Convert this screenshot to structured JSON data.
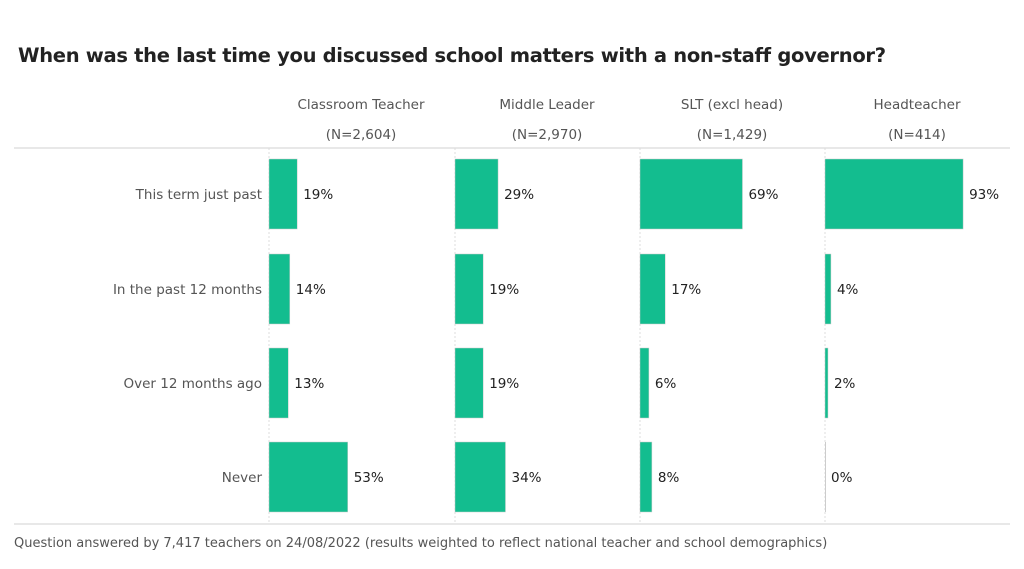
{
  "chart_data": {
    "type": "bar",
    "orientation": "horizontal",
    "title": "When was the last time you discussed school matters with a non-staff governor?",
    "footnote": "Question answered by 7,417 teachers on 24/08/2022 (results weighted to reflect national teacher and school demographics)",
    "categories": [
      "This term just past",
      "In the past 12 months",
      "Over 12 months ago",
      "Never"
    ],
    "xlim": [
      0,
      100
    ],
    "unit": "%",
    "bar_color": "#13BD8F",
    "panels": [
      {
        "name": "Classroom Teacher",
        "n_label": "(N=2,604)",
        "values": [
          19,
          14,
          13,
          53
        ]
      },
      {
        "name": "Middle Leader",
        "n_label": "(N=2,970)",
        "values": [
          29,
          19,
          19,
          34
        ]
      },
      {
        "name": "SLT (excl head)",
        "n_label": "(N=1,429)",
        "values": [
          69,
          17,
          6,
          8
        ]
      },
      {
        "name": "Headteacher",
        "n_label": "(N=414)",
        "values": [
          93,
          4,
          2,
          0
        ]
      }
    ]
  }
}
